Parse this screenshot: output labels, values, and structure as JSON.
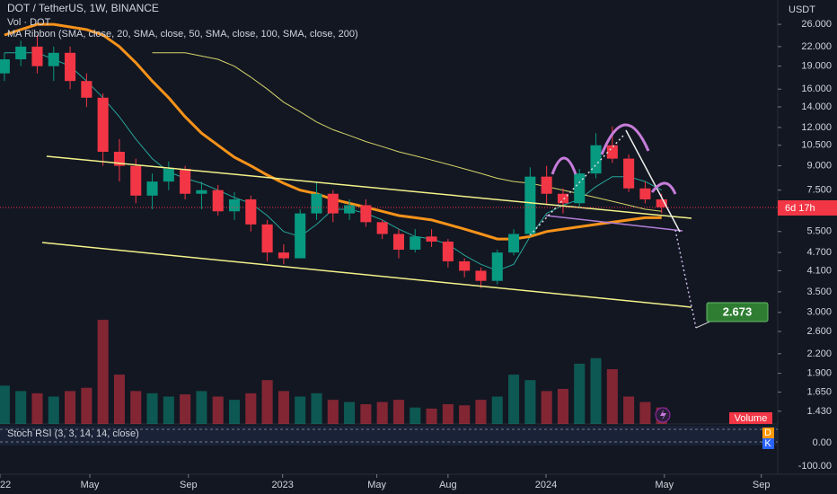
{
  "chart_data": {
    "type": "candlestick",
    "title": "DOT / TetherUS, 1W, BINANCE",
    "volume_label": "Vol · DOT",
    "indicator_label": "MA Ribbon (SMA, close, 20, SMA, close, 50, SMA, close, 100, SMA, close, 200)",
    "currency": "USDT",
    "log_scale": true,
    "up_color": "#089981",
    "down_color": "#f23645",
    "x": [
      0,
      3,
      6,
      9,
      12,
      15,
      18,
      21,
      24,
      27,
      30,
      33,
      36,
      39,
      42,
      45,
      48,
      51,
      54,
      57,
      60,
      63,
      66,
      69,
      72,
      75,
      78,
      81,
      84,
      87,
      90,
      93,
      96,
      99,
      102,
      105,
      108,
      111,
      114,
      117,
      120
    ],
    "open": [
      18,
      20,
      22,
      19,
      21,
      17,
      15,
      10,
      9,
      7.2,
      8,
      8.8,
      7.3,
      7.5,
      6.4,
      7,
      5.8,
      4.7,
      4.5,
      6.3,
      7.3,
      6.3,
      6.7,
      5.9,
      5.4,
      4.8,
      5.3,
      5.1,
      4.4,
      4.1,
      3.8,
      4.7,
      5.4,
      8.3,
      7.3,
      6.8,
      8.5,
      10.5,
      9.5,
      7.6,
      7
    ],
    "high": [
      21,
      23,
      24,
      22,
      22,
      18,
      15.5,
      11,
      9.5,
      8.5,
      9.3,
      9,
      8,
      7.8,
      7.4,
      7.2,
      6,
      5,
      6.5,
      8,
      7.5,
      7,
      7,
      6,
      5.6,
      5.6,
      5.6,
      5.2,
      4.5,
      4.2,
      4.8,
      5.6,
      8.9,
      9,
      7.6,
      8.8,
      11.5,
      12.1,
      9.8,
      8,
      7.3
    ],
    "low": [
      17,
      19,
      18,
      17,
      16,
      14,
      9,
      8,
      6.8,
      6.5,
      7.5,
      7,
      6.5,
      6.2,
      6,
      5.5,
      4.4,
      4.3,
      4.5,
      6,
      5.9,
      6,
      5.7,
      5.2,
      4.5,
      4.7,
      4.9,
      4.2,
      3.9,
      3.6,
      3.7,
      4.6,
      5.3,
      6.7,
      6.3,
      6.6,
      8.2,
      9.2,
      7.4,
      6.8,
      6.3
    ],
    "close": [
      20,
      22,
      19,
      21,
      17,
      15,
      10,
      9,
      7.2,
      8,
      8.8,
      7.3,
      7.5,
      6.4,
      7,
      5.8,
      4.7,
      4.5,
      6.3,
      7.3,
      6.3,
      6.7,
      5.9,
      5.4,
      4.8,
      5.3,
      5.1,
      4.4,
      4.1,
      3.8,
      4.7,
      5.4,
      8.3,
      7.3,
      6.8,
      8.5,
      10.5,
      9.5,
      7.6,
      7,
      6.6
    ],
    "series": [
      {
        "color": "#26a69a",
        "values": [
          21,
          21,
          21,
          20,
          19,
          17,
          15,
          13,
          11,
          9.5,
          8.6,
          8.2,
          7.9,
          7.5,
          7.1,
          6.8,
          6.2,
          5.5,
          5.3,
          5.8,
          6.5,
          6.5,
          6.3,
          6,
          5.6,
          5.3,
          5.2,
          5,
          4.6,
          4.3,
          4.1,
          4.3,
          5.3,
          6.3,
          6.7,
          7,
          7.7,
          8.3,
          8.3,
          8,
          7.5
        ]
      },
      {
        "color": "#f7931a",
        "values": [
          24,
          25,
          26,
          26,
          25.5,
          25,
          24,
          22,
          19.5,
          17,
          15,
          13,
          11.5,
          10.5,
          9.6,
          9,
          8.4,
          7.9,
          7.5,
          7.3,
          7,
          6.8,
          6.6,
          6.4,
          6.2,
          6.1,
          6,
          5.8,
          5.6,
          5.4,
          5.2,
          5.2,
          5.3,
          5.5,
          5.6,
          5.7,
          5.8,
          5.9,
          6,
          6.1,
          6.1
        ]
      },
      {
        "color": "#d4d36a",
        "values": [
          null,
          null,
          null,
          null,
          null,
          null,
          null,
          null,
          null,
          21,
          21,
          21,
          20.5,
          20,
          19,
          17.5,
          16,
          14.5,
          13.5,
          12.5,
          11.8,
          11.3,
          10.8,
          10.4,
          10,
          9.7,
          9.4,
          9.1,
          8.8,
          8.5,
          8.2,
          8,
          7.9,
          7.7,
          7.5,
          7.3,
          7.1,
          6.9,
          6.7,
          6.5,
          6.4
        ]
      }
    ],
    "volume": [
      35,
      30,
      28,
      25,
      30,
      33,
      95,
      45,
      30,
      28,
      25,
      27,
      30,
      25,
      22,
      28,
      40,
      30,
      25,
      28,
      22,
      20,
      18,
      20,
      22,
      15,
      14,
      18,
      17,
      22,
      25,
      45,
      40,
      30,
      32,
      55,
      60,
      50,
      25,
      20,
      15
    ],
    "volume_ylim": [
      0,
      100
    ],
    "volume_tag": "Volume",
    "xlim": [
      -0.8,
      141.2
    ],
    "ylim": [
      1.3,
      31.2
    ],
    "yticks": [
      {
        "value": 26,
        "label": "26.000"
      },
      {
        "value": 22,
        "label": "22.000"
      },
      {
        "value": 19,
        "label": "19.000"
      },
      {
        "value": 16,
        "label": "16.000"
      },
      {
        "value": 14,
        "label": "14.000"
      },
      {
        "value": 12,
        "label": "12.000"
      },
      {
        "value": 10.5,
        "label": "10.500"
      },
      {
        "value": 9,
        "label": "9.000"
      },
      {
        "value": 7.5,
        "label": "7.500"
      },
      {
        "value": 5.5,
        "label": "5.500"
      },
      {
        "value": 4.7,
        "label": "4.700"
      },
      {
        "value": 4.1,
        "label": "4.100"
      },
      {
        "value": 3.5,
        "label": "3.500"
      },
      {
        "value": 3,
        "label": "3.000"
      },
      {
        "value": 2.6,
        "label": "2.600"
      },
      {
        "value": 2.2,
        "label": "2.200"
      },
      {
        "value": 1.9,
        "label": "1.900"
      },
      {
        "value": 1.65,
        "label": "1.650"
      },
      {
        "value": 1.43,
        "label": "1.430"
      }
    ],
    "xticks": [
      {
        "value": -0.8,
        "label": "22"
      },
      {
        "value": 15.6,
        "label": "May"
      },
      {
        "value": 33.6,
        "label": "Sep"
      },
      {
        "value": 50.8,
        "label": "2023"
      },
      {
        "value": 68,
        "label": "May"
      },
      {
        "value": 81,
        "label": "Aug"
      },
      {
        "value": 98.9,
        "label": "2024"
      },
      {
        "value": 120.5,
        "label": "May"
      },
      {
        "value": 138.2,
        "label": "Sep"
      }
    ],
    "target_label": "2.673",
    "countdown": "6d 17h",
    "rsi": {
      "label": "Stoch RSI (3, 3, 14, 14, close)",
      "ylim": [
        -100,
        80
      ],
      "yticks": [
        {
          "value": 0,
          "label": "0.00"
        },
        {
          "value": -100,
          "label": "-100.00"
        }
      ],
      "d_tag": "D",
      "k_tag": "K"
    }
  }
}
